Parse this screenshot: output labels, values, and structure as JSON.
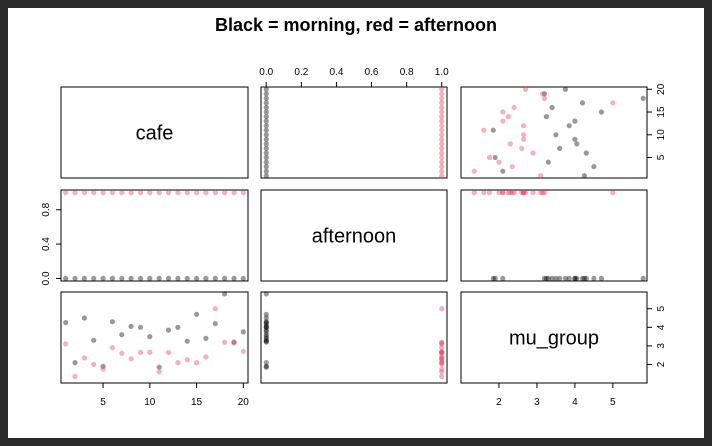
{
  "chart_data": {
    "type": "scatter-matrix",
    "title": "Black = morning, red = afternoon",
    "variables": [
      "cafe",
      "afternoon",
      "mu_group"
    ],
    "colors": {
      "morning": "#000000",
      "afternoon": "#e8536f"
    },
    "axes": {
      "cafe": {
        "range": [
          0.5,
          20.5
        ],
        "ticks": [
          5,
          10,
          15,
          20
        ]
      },
      "afternoon": {
        "range": [
          -0.03,
          1.03
        ],
        "ticks": [
          0.0,
          0.2,
          0.4,
          0.6,
          0.8,
          1.0
        ],
        "left_ticks": [
          0.0,
          0.4,
          0.8
        ]
      },
      "mu_group": {
        "range": [
          1.0,
          5.9
        ],
        "ticks": [
          2,
          3,
          4,
          5
        ]
      }
    },
    "observations": [
      {
        "cafe": 1,
        "afternoon": 0,
        "mu_group": 4.25
      },
      {
        "cafe": 1,
        "afternoon": 1,
        "mu_group": 3.1
      },
      {
        "cafe": 2,
        "afternoon": 0,
        "mu_group": 2.1
      },
      {
        "cafe": 2,
        "afternoon": 1,
        "mu_group": 1.35
      },
      {
        "cafe": 3,
        "afternoon": 0,
        "mu_group": 4.5
      },
      {
        "cafe": 3,
        "afternoon": 1,
        "mu_group": 2.35
      },
      {
        "cafe": 4,
        "afternoon": 0,
        "mu_group": 3.3
      },
      {
        "cafe": 4,
        "afternoon": 1,
        "mu_group": 2.0
      },
      {
        "cafe": 5,
        "afternoon": 0,
        "mu_group": 1.9
      },
      {
        "cafe": 5,
        "afternoon": 1,
        "mu_group": 1.75
      },
      {
        "cafe": 6,
        "afternoon": 0,
        "mu_group": 4.3
      },
      {
        "cafe": 6,
        "afternoon": 1,
        "mu_group": 2.9
      },
      {
        "cafe": 7,
        "afternoon": 0,
        "mu_group": 3.6
      },
      {
        "cafe": 7,
        "afternoon": 1,
        "mu_group": 2.6
      },
      {
        "cafe": 8,
        "afternoon": 0,
        "mu_group": 4.05
      },
      {
        "cafe": 8,
        "afternoon": 1,
        "mu_group": 2.3
      },
      {
        "cafe": 9,
        "afternoon": 0,
        "mu_group": 4.0
      },
      {
        "cafe": 9,
        "afternoon": 1,
        "mu_group": 2.65
      },
      {
        "cafe": 10,
        "afternoon": 0,
        "mu_group": 3.5
      },
      {
        "cafe": 10,
        "afternoon": 1,
        "mu_group": 2.65
      },
      {
        "cafe": 11,
        "afternoon": 0,
        "mu_group": 1.85
      },
      {
        "cafe": 11,
        "afternoon": 1,
        "mu_group": 1.6
      },
      {
        "cafe": 12,
        "afternoon": 0,
        "mu_group": 3.85
      },
      {
        "cafe": 12,
        "afternoon": 1,
        "mu_group": 2.65
      },
      {
        "cafe": 13,
        "afternoon": 0,
        "mu_group": 4.0
      },
      {
        "cafe": 13,
        "afternoon": 1,
        "mu_group": 2.1
      },
      {
        "cafe": 14,
        "afternoon": 0,
        "mu_group": 3.25
      },
      {
        "cafe": 14,
        "afternoon": 1,
        "mu_group": 2.25
      },
      {
        "cafe": 15,
        "afternoon": 0,
        "mu_group": 4.7
      },
      {
        "cafe": 15,
        "afternoon": 1,
        "mu_group": 2.1
      },
      {
        "cafe": 16,
        "afternoon": 0,
        "mu_group": 3.4
      },
      {
        "cafe": 16,
        "afternoon": 1,
        "mu_group": 2.4
      },
      {
        "cafe": 17,
        "afternoon": 0,
        "mu_group": 4.2
      },
      {
        "cafe": 17,
        "afternoon": 1,
        "mu_group": 5.0
      },
      {
        "cafe": 18,
        "afternoon": 0,
        "mu_group": 5.8
      },
      {
        "cafe": 18,
        "afternoon": 1,
        "mu_group": 3.2
      },
      {
        "cafe": 19,
        "afternoon": 0,
        "mu_group": 3.2
      },
      {
        "cafe": 19,
        "afternoon": 1,
        "mu_group": 3.15
      },
      {
        "cafe": 20,
        "afternoon": 0,
        "mu_group": 3.75
      },
      {
        "cafe": 20,
        "afternoon": 1,
        "mu_group": 2.7
      }
    ]
  }
}
